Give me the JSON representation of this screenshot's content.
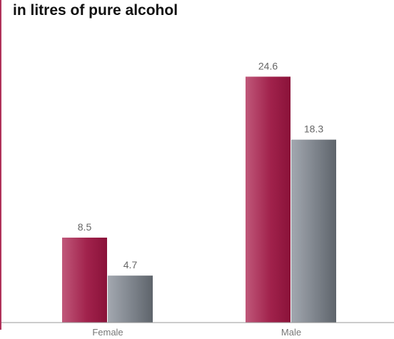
{
  "chart_data": {
    "type": "bar",
    "title": "in litres of pure alcohol",
    "categories": [
      "Female",
      "Male"
    ],
    "series": [
      {
        "values": [
          8.5,
          24.6
        ],
        "color": "#9c1c46"
      },
      {
        "values": [
          4.7,
          18.3
        ],
        "color": "#6b7078"
      }
    ],
    "value_labels": [
      [
        "8.5",
        "24.6"
      ],
      [
        "4.7",
        "18.3"
      ]
    ],
    "ylim": [
      0,
      28.2
    ],
    "grid": false,
    "legend": "none",
    "xlabel": "",
    "ylabel": ""
  }
}
